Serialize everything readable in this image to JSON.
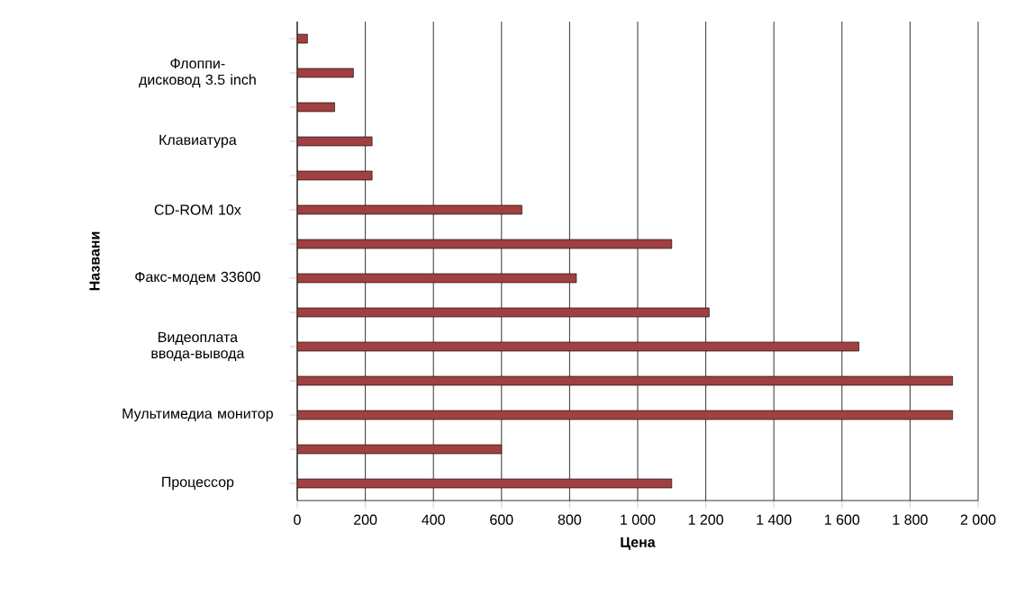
{
  "chart_data": {
    "type": "bar",
    "orientation": "horizontal",
    "xlabel": "Цена",
    "ylabel": "Названи",
    "categories": [
      null,
      "Флоппи-дисковод 3.5 inch",
      null,
      "Клавиатура",
      null,
      "CD-ROM 10x",
      null,
      "Факс-модем 33600",
      null,
      "Видеоплата ввода-вывода",
      null,
      "Мультимедиа монитор",
      null,
      "Процессор"
    ],
    "values": [
      30,
      165,
      110,
      220,
      220,
      660,
      1100,
      820,
      1210,
      1650,
      1925,
      1925,
      600,
      1100
    ],
    "color": "#a04040",
    "grid": "x",
    "xlim": [
      0,
      2000
    ],
    "xticks": [
      0,
      200,
      400,
      600,
      800,
      {
        "value": 1000,
        "label": "1 000"
      },
      {
        "value": 1200,
        "label": "1 200"
      },
      {
        "value": 1400,
        "label": "1 400"
      },
      {
        "value": 1600,
        "label": "1 600"
      },
      {
        "value": 1800,
        "label": "1 800"
      },
      {
        "value": 2000,
        "label": "2 000"
      }
    ]
  }
}
